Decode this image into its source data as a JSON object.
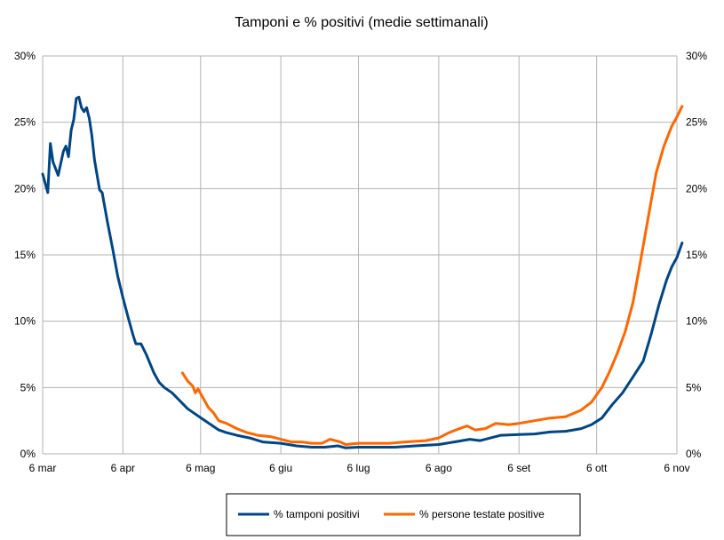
{
  "chart_data": {
    "type": "line",
    "title": "Tamponi e % positivi (medie settimanali)",
    "xlabel": "",
    "ylabel": "",
    "x_ticks": [
      "6 mar",
      "6 apr",
      "6 mag",
      "6 giu",
      "6 lug",
      "6 ago",
      "6 set",
      "6 ott",
      "6 nov"
    ],
    "y_ticks": [
      "0%",
      "5%",
      "10%",
      "15%",
      "20%",
      "25%",
      "30%"
    ],
    "y2_ticks": [
      "0%",
      "5%",
      "10%",
      "15%",
      "20%",
      "25%",
      "30%"
    ],
    "ylim": [
      0,
      30
    ],
    "y2lim": [
      0,
      30
    ],
    "x_range": [
      "2020-03-06",
      "2020-11-06"
    ],
    "grid": true,
    "legend_position": "bottom",
    "series": [
      {
        "name": "% tamponi positivi",
        "color": "#004586",
        "points": [
          [
            "2020-03-06",
            21.1
          ],
          [
            "2020-03-08",
            19.7
          ],
          [
            "2020-03-09",
            23.4
          ],
          [
            "2020-03-10",
            22.0
          ],
          [
            "2020-03-12",
            21.0
          ],
          [
            "2020-03-14",
            22.8
          ],
          [
            "2020-03-15",
            23.2
          ],
          [
            "2020-03-16",
            22.4
          ],
          [
            "2020-03-17",
            24.4
          ],
          [
            "2020-03-18",
            25.2
          ],
          [
            "2020-03-19",
            26.8
          ],
          [
            "2020-03-20",
            26.9
          ],
          [
            "2020-03-21",
            26.1
          ],
          [
            "2020-03-22",
            25.8
          ],
          [
            "2020-03-23",
            26.1
          ],
          [
            "2020-03-24",
            25.3
          ],
          [
            "2020-03-25",
            24.0
          ],
          [
            "2020-03-26",
            22.2
          ],
          [
            "2020-03-28",
            19.9
          ],
          [
            "2020-03-29",
            19.7
          ],
          [
            "2020-03-31",
            17.5
          ],
          [
            "2020-04-02",
            15.5
          ],
          [
            "2020-04-04",
            13.4
          ],
          [
            "2020-04-06",
            11.8
          ],
          [
            "2020-04-08",
            10.3
          ],
          [
            "2020-04-10",
            8.9
          ],
          [
            "2020-04-11",
            8.3
          ],
          [
            "2020-04-13",
            8.3
          ],
          [
            "2020-04-15",
            7.5
          ],
          [
            "2020-04-18",
            6.1
          ],
          [
            "2020-04-20",
            5.4
          ],
          [
            "2020-04-22",
            5.0
          ],
          [
            "2020-04-25",
            4.6
          ],
          [
            "2020-04-28",
            4.0
          ],
          [
            "2020-05-01",
            3.4
          ],
          [
            "2020-05-04",
            3.0
          ],
          [
            "2020-05-07",
            2.6
          ],
          [
            "2020-05-10",
            2.2
          ],
          [
            "2020-05-13",
            1.8
          ],
          [
            "2020-05-16",
            1.6
          ],
          [
            "2020-05-20",
            1.4
          ],
          [
            "2020-05-25",
            1.2
          ],
          [
            "2020-05-30",
            0.9
          ],
          [
            "2020-06-06",
            0.8
          ],
          [
            "2020-06-12",
            0.6
          ],
          [
            "2020-06-18",
            0.5
          ],
          [
            "2020-06-23",
            0.5
          ],
          [
            "2020-06-28",
            0.6
          ],
          [
            "2020-07-01",
            0.45
          ],
          [
            "2020-07-06",
            0.5
          ],
          [
            "2020-07-12",
            0.5
          ],
          [
            "2020-07-20",
            0.5
          ],
          [
            "2020-07-28",
            0.6
          ],
          [
            "2020-08-06",
            0.7
          ],
          [
            "2020-08-12",
            0.9
          ],
          [
            "2020-08-18",
            1.1
          ],
          [
            "2020-08-22",
            1.0
          ],
          [
            "2020-08-26",
            1.2
          ],
          [
            "2020-08-30",
            1.4
          ],
          [
            "2020-09-06",
            1.45
          ],
          [
            "2020-09-12",
            1.5
          ],
          [
            "2020-09-18",
            1.65
          ],
          [
            "2020-09-24",
            1.7
          ],
          [
            "2020-09-30",
            1.9
          ],
          [
            "2020-10-04",
            2.2
          ],
          [
            "2020-10-08",
            2.7
          ],
          [
            "2020-10-12",
            3.7
          ],
          [
            "2020-10-16",
            4.6
          ],
          [
            "2020-10-20",
            5.8
          ],
          [
            "2020-10-24",
            7.0
          ],
          [
            "2020-10-27",
            9.0
          ],
          [
            "2020-10-30",
            11.2
          ],
          [
            "2020-11-02",
            13.1
          ],
          [
            "2020-11-04",
            14.1
          ],
          [
            "2020-11-06",
            14.8
          ],
          [
            "2020-11-08",
            15.9
          ]
        ]
      },
      {
        "name": "% persone testate positive",
        "color": "#ff6600",
        "points": [
          [
            "2020-04-29",
            6.1
          ],
          [
            "2020-04-30",
            5.8
          ],
          [
            "2020-05-01",
            5.5
          ],
          [
            "2020-05-03",
            5.1
          ],
          [
            "2020-05-04",
            4.6
          ],
          [
            "2020-05-05",
            4.9
          ],
          [
            "2020-05-07",
            4.2
          ],
          [
            "2020-05-09",
            3.5
          ],
          [
            "2020-05-11",
            3.1
          ],
          [
            "2020-05-13",
            2.5
          ],
          [
            "2020-05-16",
            2.3
          ],
          [
            "2020-05-20",
            1.9
          ],
          [
            "2020-05-24",
            1.6
          ],
          [
            "2020-05-28",
            1.4
          ],
          [
            "2020-06-02",
            1.3
          ],
          [
            "2020-06-06",
            1.1
          ],
          [
            "2020-06-10",
            0.9
          ],
          [
            "2020-06-14",
            0.9
          ],
          [
            "2020-06-18",
            0.8
          ],
          [
            "2020-06-22",
            0.8
          ],
          [
            "2020-06-25",
            1.1
          ],
          [
            "2020-06-29",
            0.9
          ],
          [
            "2020-07-01",
            0.7
          ],
          [
            "2020-07-06",
            0.8
          ],
          [
            "2020-07-12",
            0.8
          ],
          [
            "2020-07-18",
            0.8
          ],
          [
            "2020-07-24",
            0.9
          ],
          [
            "2020-08-01",
            1.0
          ],
          [
            "2020-08-06",
            1.2
          ],
          [
            "2020-08-10",
            1.6
          ],
          [
            "2020-08-14",
            1.9
          ],
          [
            "2020-08-17",
            2.1
          ],
          [
            "2020-08-20",
            1.8
          ],
          [
            "2020-08-24",
            1.9
          ],
          [
            "2020-08-28",
            2.3
          ],
          [
            "2020-09-02",
            2.2
          ],
          [
            "2020-09-06",
            2.3
          ],
          [
            "2020-09-12",
            2.5
          ],
          [
            "2020-09-18",
            2.7
          ],
          [
            "2020-09-24",
            2.8
          ],
          [
            "2020-09-30",
            3.3
          ],
          [
            "2020-10-04",
            3.9
          ],
          [
            "2020-10-08",
            5.0
          ],
          [
            "2020-10-11",
            6.2
          ],
          [
            "2020-10-14",
            7.6
          ],
          [
            "2020-10-17",
            9.2
          ],
          [
            "2020-10-20",
            11.4
          ],
          [
            "2020-10-23",
            14.6
          ],
          [
            "2020-10-26",
            17.9
          ],
          [
            "2020-10-29",
            21.2
          ],
          [
            "2020-11-01",
            23.2
          ],
          [
            "2020-11-04",
            24.7
          ],
          [
            "2020-11-06",
            25.4
          ],
          [
            "2020-11-08",
            26.2
          ]
        ]
      }
    ]
  }
}
